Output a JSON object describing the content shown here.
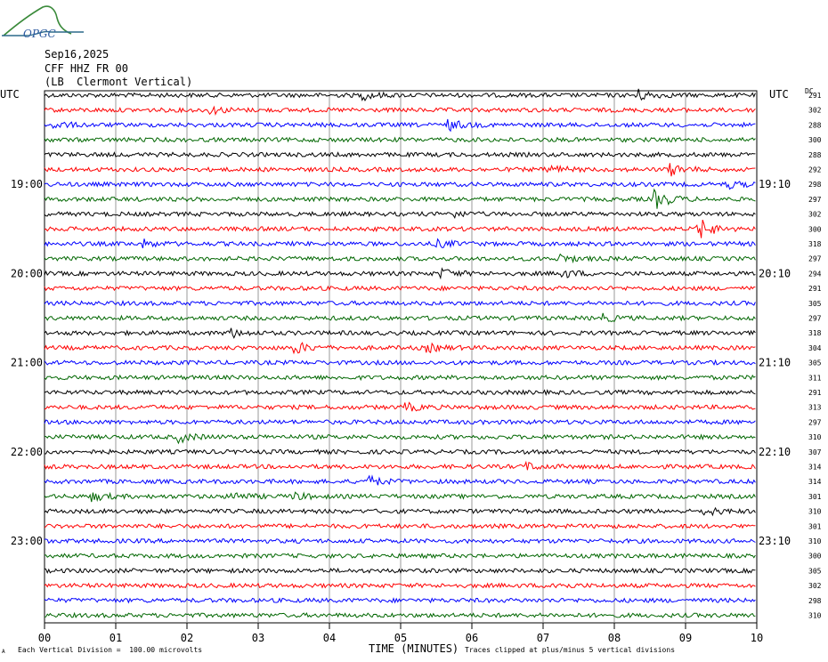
{
  "logo": {
    "text": "OPGC"
  },
  "header": {
    "date": "Sep16,2025",
    "station": "CFF HHZ FR 00",
    "location": "(LB  Clermont Vertical)"
  },
  "colors": {
    "series": [
      "#000000",
      "#ff0000",
      "#0000ff",
      "#006600"
    ],
    "grid": "#808080"
  },
  "chart_data": {
    "type": "line",
    "title": "",
    "left_axis_label": "UTC",
    "right_axis_label": "UTC",
    "dc_label": "DC",
    "left_hour_labels": [
      {
        "label": "19:00",
        "row": 6
      },
      {
        "label": "20:00",
        "row": 12
      },
      {
        "label": "21:00",
        "row": 18
      },
      {
        "label": "22:00",
        "row": 24
      },
      {
        "label": "23:00",
        "row": 30
      }
    ],
    "right_hour_labels": [
      {
        "label": "19:10",
        "row": 6
      },
      {
        "label": "20:10",
        "row": 12
      },
      {
        "label": "21:10",
        "row": 18
      },
      {
        "label": "22:10",
        "row": 24
      },
      {
        "label": "23:10",
        "row": 30
      }
    ],
    "dc_values": [
      "291",
      "302",
      "288",
      "300",
      "288",
      "292",
      "298",
      "297",
      "302",
      "300",
      "318",
      "297",
      "294",
      "291",
      "305",
      "297",
      "318",
      "304",
      "305",
      "311",
      "291",
      "313",
      "297",
      "310",
      "307",
      "314",
      "314",
      "301",
      "310",
      "301",
      "310",
      "300",
      "305",
      "302",
      "298",
      "310"
    ],
    "x_ticks": [
      "00",
      "01",
      "02",
      "03",
      "04",
      "05",
      "06",
      "07",
      "08",
      "09",
      "10"
    ],
    "xlabel": "TIME (MINUTES)",
    "xlim": [
      0,
      10
    ],
    "grid": true,
    "traces": {
      "count": 36,
      "color_cycle": [
        "black",
        "red",
        "blue",
        "green"
      ],
      "events": [
        {
          "row": 0,
          "minute": 4.5,
          "amp": 1.4
        },
        {
          "row": 0,
          "minute": 8.35,
          "amp": 2.0
        },
        {
          "row": 1,
          "minute": 2.35,
          "amp": 1.3
        },
        {
          "row": 2,
          "minute": 5.7,
          "amp": 1.8
        },
        {
          "row": 2,
          "minute": 0.15,
          "amp": 1.2
        },
        {
          "row": 5,
          "minute": 7.1,
          "amp": 1.6
        },
        {
          "row": 5,
          "minute": 8.8,
          "amp": 2.2
        },
        {
          "row": 6,
          "minute": 9.6,
          "amp": 1.3
        },
        {
          "row": 7,
          "minute": 8.6,
          "amp": 3.5
        },
        {
          "row": 8,
          "minute": 5.7,
          "amp": 1.2
        },
        {
          "row": 9,
          "minute": 9.2,
          "amp": 4.0
        },
        {
          "row": 10,
          "minute": 1.4,
          "amp": 1.3
        },
        {
          "row": 10,
          "minute": 5.55,
          "amp": 1.3
        },
        {
          "row": 11,
          "minute": 7.25,
          "amp": 1.4
        },
        {
          "row": 12,
          "minute": 5.6,
          "amp": 1.6
        },
        {
          "row": 12,
          "minute": 7.3,
          "amp": 1.3
        },
        {
          "row": 15,
          "minute": 7.85,
          "amp": 1.3
        },
        {
          "row": 16,
          "minute": 2.6,
          "amp": 1.8
        },
        {
          "row": 17,
          "minute": 3.55,
          "amp": 2.0
        },
        {
          "row": 17,
          "minute": 5.4,
          "amp": 1.3
        },
        {
          "row": 21,
          "minute": 5.1,
          "amp": 1.4
        },
        {
          "row": 23,
          "minute": 1.9,
          "amp": 1.8
        },
        {
          "row": 25,
          "minute": 6.8,
          "amp": 1.2
        },
        {
          "row": 26,
          "minute": 4.55,
          "amp": 2.0
        },
        {
          "row": 27,
          "minute": 0.7,
          "amp": 1.5
        },
        {
          "row": 27,
          "minute": 2.65,
          "amp": 1.6
        },
        {
          "row": 27,
          "minute": 3.5,
          "amp": 1.4
        },
        {
          "row": 28,
          "minute": 9.3,
          "amp": 1.6
        },
        {
          "row": 33,
          "minute": 7.15,
          "amp": 1.2
        }
      ]
    }
  },
  "footer": {
    "left_note": "Each Vertical Division =  100.00 microvolts",
    "right_note": "Traces clipped at plus/minus 5 vertical divisions",
    "corner_mark": "A"
  }
}
